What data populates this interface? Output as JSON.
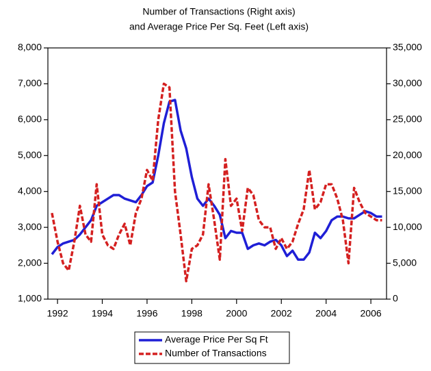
{
  "chart_data": {
    "type": "line",
    "title": [
      "Number of Transactions (Right axis)",
      "and Average Price Per Sq. Feet (Left axis)"
    ],
    "x": [
      1991.75,
      1992,
      1992.25,
      1992.5,
      1992.75,
      1993,
      1993.25,
      1993.5,
      1993.75,
      1994,
      1994.25,
      1994.5,
      1994.75,
      1995,
      1995.25,
      1995.5,
      1995.75,
      1996,
      1996.25,
      1996.5,
      1996.75,
      1997,
      1997.25,
      1997.5,
      1997.75,
      1998,
      1998.25,
      1998.5,
      1998.75,
      1999,
      1999.25,
      1999.5,
      1999.75,
      2000,
      2000.25,
      2000.5,
      2000.75,
      2001,
      2001.25,
      2001.5,
      2001.75,
      2002,
      2002.25,
      2002.5,
      2002.75,
      2003,
      2003.25,
      2003.5,
      2003.75,
      2004,
      2004.25,
      2004.5,
      2004.75,
      2005,
      2005.25,
      2005.5,
      2005.75,
      2006,
      2006.25,
      2006.5
    ],
    "series": [
      {
        "name": "Average Price Per Sq Ft",
        "color": "#1f1fd6",
        "axis": "y",
        "values": [
          2250,
          2450,
          2550,
          2600,
          2650,
          2800,
          3000,
          3200,
          3600,
          3700,
          3800,
          3900,
          3900,
          3800,
          3750,
          3700,
          3900,
          4150,
          4250,
          5000,
          5900,
          6500,
          6550,
          5700,
          5200,
          4400,
          3800,
          3600,
          3800,
          3600,
          3350,
          2700,
          2900,
          2850,
          2850,
          2400,
          2500,
          2550,
          2500,
          2600,
          2650,
          2500,
          2200,
          2350,
          2100,
          2100,
          2300,
          2850,
          2700,
          2900,
          3200,
          3300,
          3300,
          3250,
          3250,
          3350,
          3450,
          3400,
          3300,
          3300
        ]
      },
      {
        "name": "Number of Transactions",
        "color": "#d42020",
        "axis": "y2",
        "values": [
          12000,
          8000,
          5000,
          4000,
          8000,
          13000,
          9000,
          8000,
          16000,
          9000,
          7500,
          7000,
          9000,
          10500,
          7500,
          12000,
          14000,
          18000,
          16500,
          25000,
          30000,
          29500,
          15000,
          9000,
          2500,
          7000,
          7500,
          9000,
          16000,
          11000,
          5500,
          19500,
          13000,
          14000,
          9500,
          15500,
          14500,
          11000,
          10000,
          10000,
          7000,
          8500,
          7000,
          8000,
          10500,
          12500,
          18000,
          12500,
          13500,
          16000,
          16000,
          14000,
          11000,
          5000,
          15500,
          13500,
          12000,
          11500,
          11000,
          11000
        ]
      }
    ],
    "xlim": [
      1991.57,
      2006.7
    ],
    "xticks": [
      1992,
      1994,
      1996,
      1998,
      2000,
      2002,
      2004,
      2006
    ],
    "ylim": [
      1000,
      8000
    ],
    "yticks": [
      {
        "value": 1000,
        "label": "1,000"
      },
      {
        "value": 2000,
        "label": "2,000"
      },
      {
        "value": 3000,
        "label": "3,000"
      },
      {
        "value": 4000,
        "label": "4,000"
      },
      {
        "value": 5000,
        "label": "5,000"
      },
      {
        "value": 6000,
        "label": "6,000"
      },
      {
        "value": 7000,
        "label": "7,000"
      },
      {
        "value": 8000,
        "label": "8,000"
      }
    ],
    "y2lim": [
      0,
      35000
    ],
    "y2ticks": [
      0,
      {
        "value": 5000,
        "label": "5,000"
      },
      {
        "value": 10000,
        "label": "10,000"
      },
      {
        "value": 15000,
        "label": "15,000"
      },
      {
        "value": 20000,
        "label": "20,000"
      },
      {
        "value": 25000,
        "label": "25,000"
      },
      {
        "value": 30000,
        "label": "30,000"
      },
      {
        "value": 35000,
        "label": "35,000"
      }
    ],
    "legend": "bottom"
  }
}
